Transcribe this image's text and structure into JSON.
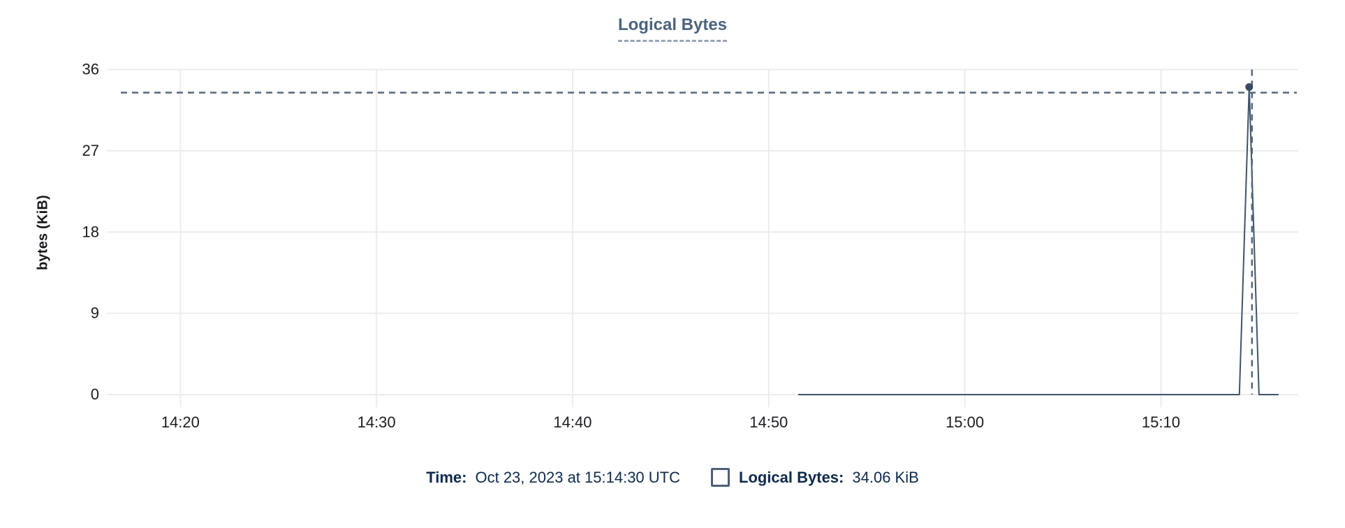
{
  "chart": {
    "title": "Logical Bytes",
    "y_axis_label": "bytes (KiB)"
  },
  "readout": {
    "time_label": "Time:",
    "time_value": "Oct 23, 2023 at 15:14:30 UTC",
    "series_label": "Logical Bytes:",
    "series_value": "34.06 KiB"
  },
  "colors": {
    "title": "#4b6380",
    "title_underline": "#96a3b8",
    "axis_text": "#1b1d22",
    "gridline": "#ececee",
    "series_line": "#3e5369",
    "marker": "#3a4c5f",
    "crosshair": "#54687c",
    "readout_text": "#0e2a4d",
    "legend_swatch_border": "#4d5e78"
  },
  "chart_data": {
    "type": "line",
    "title": "Logical Bytes",
    "xlabel": "",
    "ylabel": "bytes (KiB)",
    "x_ticks": [
      "14:20",
      "14:30",
      "14:40",
      "14:50",
      "15:00",
      "15:10"
    ],
    "y_ticks": [
      0,
      9,
      18,
      27,
      36
    ],
    "ylim": [
      0,
      36
    ],
    "xlim": [
      "14:16:15",
      "15:17:00"
    ],
    "grid": true,
    "legend_position": "bottom",
    "series": [
      {
        "name": "Logical Bytes",
        "unit": "KiB",
        "points": [
          [
            "14:51:30",
            0
          ],
          [
            "15:14:00",
            0
          ],
          [
            "15:14:30",
            34.06
          ],
          [
            "15:15:00",
            0
          ],
          [
            "15:16:00",
            0
          ]
        ]
      }
    ],
    "hover_point": {
      "time": "15:14:30",
      "value": 34.06,
      "time_display": "Oct 23, 2023 at 15:14:30 UTC",
      "value_display": "34.06 KiB"
    }
  }
}
